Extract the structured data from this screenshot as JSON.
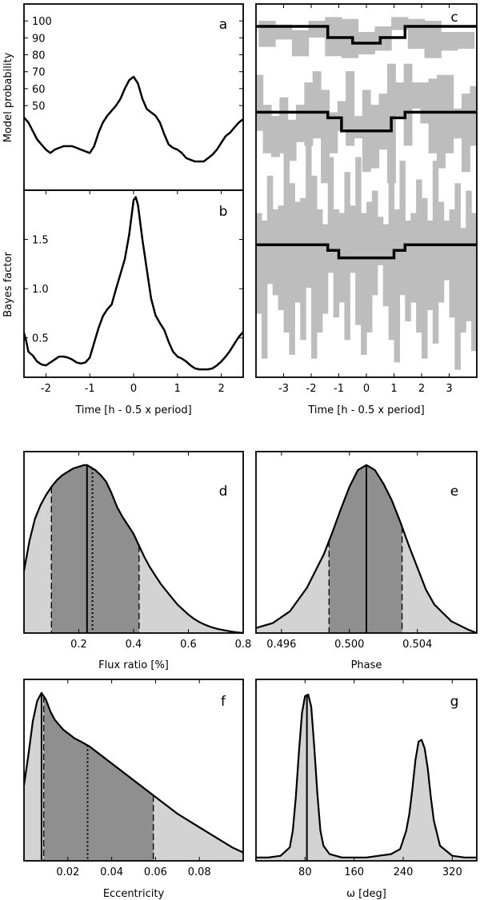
{
  "chart_data": [
    {
      "id": "a",
      "type": "line",
      "panel_label": "a",
      "ylabel": "Model probability",
      "xlim": [
        -2.5,
        2.5
      ],
      "ylim": [
        0,
        110
      ],
      "yticks": [
        50,
        60,
        70,
        80,
        90,
        100
      ],
      "x": [
        -2.5,
        -2.4,
        -2.3,
        -2.2,
        -2.1,
        -2.0,
        -1.9,
        -1.8,
        -1.7,
        -1.6,
        -1.5,
        -1.4,
        -1.3,
        -1.2,
        -1.1,
        -1.0,
        -0.9,
        -0.8,
        -0.7,
        -0.6,
        -0.5,
        -0.4,
        -0.3,
        -0.2,
        -0.1,
        0.0,
        0.1,
        0.2,
        0.3,
        0.4,
        0.5,
        0.6,
        0.7,
        0.8,
        0.9,
        1.0,
        1.1,
        1.2,
        1.3,
        1.4,
        1.5,
        1.6,
        1.7,
        1.8,
        1.9,
        2.0,
        2.1,
        2.2,
        2.3,
        2.4,
        2.5
      ],
      "y": [
        43,
        40,
        35,
        30,
        27,
        24,
        22,
        24,
        25,
        26,
        26,
        26,
        25,
        24,
        23,
        22,
        26,
        34,
        40,
        44,
        47,
        50,
        54,
        60,
        65,
        67,
        63,
        54,
        48,
        46,
        44,
        40,
        33,
        27,
        25,
        24,
        22,
        19,
        18,
        17,
        17,
        17,
        19,
        21,
        24,
        28,
        32,
        34,
        37,
        40,
        42
      ]
    },
    {
      "id": "b",
      "type": "line",
      "panel_label": "b",
      "ylabel": "Bayes factor",
      "xlabel": "Time [h - 0.5 x period]",
      "xlim": [
        -2.5,
        2.5
      ],
      "ylim": [
        0.1,
        2.0
      ],
      "xticks": [
        -2,
        -1,
        0,
        1,
        2
      ],
      "yticks": [
        0.5,
        1.0,
        1.5
      ],
      "ytick_labels": [
        "0.5",
        "1.0",
        "1.5"
      ],
      "x": [
        -2.5,
        -2.45,
        -2.4,
        -2.3,
        -2.2,
        -2.1,
        -2.0,
        -1.9,
        -1.8,
        -1.7,
        -1.6,
        -1.5,
        -1.4,
        -1.3,
        -1.2,
        -1.1,
        -1.0,
        -0.9,
        -0.8,
        -0.7,
        -0.6,
        -0.5,
        -0.4,
        -0.3,
        -0.2,
        -0.1,
        0.0,
        0.05,
        0.1,
        0.2,
        0.3,
        0.4,
        0.5,
        0.6,
        0.7,
        0.8,
        0.9,
        1.0,
        1.1,
        1.2,
        1.3,
        1.4,
        1.5,
        1.6,
        1.7,
        1.8,
        1.9,
        2.0,
        2.1,
        2.2,
        2.3,
        2.4,
        2.5
      ],
      "y": [
        0.55,
        0.47,
        0.36,
        0.32,
        0.26,
        0.23,
        0.22,
        0.25,
        0.28,
        0.31,
        0.31,
        0.3,
        0.28,
        0.25,
        0.24,
        0.25,
        0.3,
        0.45,
        0.6,
        0.72,
        0.79,
        0.84,
        1.0,
        1.15,
        1.3,
        1.55,
        1.9,
        1.93,
        1.85,
        1.5,
        1.2,
        0.9,
        0.73,
        0.65,
        0.58,
        0.46,
        0.36,
        0.31,
        0.29,
        0.26,
        0.22,
        0.19,
        0.18,
        0.18,
        0.18,
        0.19,
        0.22,
        0.26,
        0.31,
        0.37,
        0.44,
        0.51,
        0.56
      ]
    },
    {
      "id": "c",
      "type": "line",
      "panel_label": "c",
      "xlabel": "Time [h - 0.5 x period]",
      "xlim": [
        -4,
        4
      ],
      "ylim": [
        0,
        1
      ],
      "xticks": [
        -3,
        -2,
        -1,
        0,
        1,
        2,
        3
      ],
      "series": [
        {
          "name": "top",
          "bin_width": 0.6,
          "bin_centers": [
            -3.6,
            -3.0,
            -2.4,
            -1.8,
            -1.2,
            -0.6,
            0.0,
            0.6,
            1.2,
            1.8,
            2.4,
            3.0,
            3.6
          ],
          "lower": [
            0.885,
            0.905,
            0.86,
            0.91,
            0.86,
            0.855,
            0.865,
            0.875,
            0.93,
            0.88,
            0.855,
            0.875,
            0.88
          ],
          "upper": [
            0.955,
            0.945,
            0.93,
            0.955,
            0.965,
            0.96,
            0.925,
            0.94,
            0.965,
            0.96,
            0.955,
            0.925,
            0.925
          ],
          "model_x": [
            -4.0,
            -1.4,
            -1.4,
            -0.5,
            -0.5,
            0.5,
            0.5,
            1.4,
            1.4,
            4.0
          ],
          "model_y": [
            0.94,
            0.94,
            0.91,
            0.91,
            0.895,
            0.895,
            0.91,
            0.91,
            0.94,
            0.94
          ]
        },
        {
          "name": "middle",
          "bin_width": 0.3,
          "bin_centers": [
            -3.9,
            -3.6,
            -3.3,
            -3.0,
            -2.7,
            -2.4,
            -2.1,
            -1.8,
            -1.5,
            -1.2,
            -0.9,
            -0.6,
            -0.3,
            0.0,
            0.3,
            0.6,
            0.9,
            1.2,
            1.5,
            1.8,
            2.1,
            2.4,
            2.7,
            3.0,
            3.3,
            3.6,
            3.9
          ],
          "lower": [
            0.66,
            0.6,
            0.59,
            0.6,
            0.58,
            0.63,
            0.62,
            0.64,
            0.52,
            0.6,
            0.66,
            0.62,
            0.64,
            0.55,
            0.56,
            0.61,
            0.52,
            0.7,
            0.62,
            0.72,
            0.68,
            0.6,
            0.56,
            0.6,
            0.64,
            0.55,
            0.62
          ],
          "upper": [
            0.81,
            0.73,
            0.7,
            0.75,
            0.69,
            0.73,
            0.79,
            0.82,
            0.77,
            0.71,
            0.74,
            0.82,
            0.7,
            0.77,
            0.73,
            0.76,
            0.84,
            0.79,
            0.84,
            0.79,
            0.79,
            0.8,
            0.81,
            0.81,
            0.72,
            0.76,
            0.78
          ],
          "model_x": [
            -4.0,
            -1.4,
            -1.4,
            -0.9,
            -0.9,
            0.9,
            0.9,
            1.4,
            1.4,
            4.0
          ],
          "model_y": [
            0.71,
            0.71,
            0.695,
            0.695,
            0.66,
            0.66,
            0.695,
            0.695,
            0.71,
            0.71
          ]
        },
        {
          "name": "bottom",
          "bin_width": 0.2,
          "bin_centers": [
            -3.9,
            -3.7,
            -3.5,
            -3.3,
            -3.1,
            -2.9,
            -2.7,
            -2.5,
            -2.3,
            -2.1,
            -1.9,
            -1.7,
            -1.5,
            -1.3,
            -1.1,
            -0.9,
            -0.7,
            -0.5,
            -0.3,
            -0.1,
            0.1,
            0.3,
            0.5,
            0.7,
            0.9,
            1.1,
            1.3,
            1.5,
            1.7,
            1.9,
            2.1,
            2.3,
            2.5,
            2.7,
            2.9,
            3.1,
            3.3,
            3.5,
            3.7,
            3.9
          ],
          "lower": [
            0.17,
            0.05,
            0.25,
            0.22,
            0.18,
            0.12,
            0.06,
            0.2,
            0.1,
            0.24,
            0.05,
            0.12,
            0.17,
            0.28,
            0.16,
            0.2,
            0.1,
            0.28,
            0.14,
            0.06,
            0.12,
            0.22,
            0.3,
            0.19,
            0.1,
            0.04,
            0.22,
            0.15,
            0.2,
            0.12,
            0.05,
            0.18,
            0.09,
            0.2,
            0.26,
            0.16,
            0.02,
            0.12,
            0.15,
            0.07
          ],
          "upper": [
            0.44,
            0.42,
            0.54,
            0.45,
            0.46,
            0.6,
            0.52,
            0.47,
            0.48,
            0.62,
            0.54,
            0.45,
            0.41,
            0.59,
            0.45,
            0.44,
            0.55,
            0.46,
            0.59,
            0.44,
            0.47,
            0.5,
            0.43,
            0.41,
            0.55,
            0.45,
            0.58,
            0.42,
            0.44,
            0.53,
            0.48,
            0.42,
            0.58,
            0.47,
            0.42,
            0.45,
            0.52,
            0.4,
            0.5,
            0.44
          ],
          "model_x": [
            -4.0,
            -1.4,
            -1.4,
            -1.0,
            -1.0,
            1.0,
            1.0,
            1.4,
            1.4,
            4.0
          ],
          "model_y": [
            0.355,
            0.355,
            0.34,
            0.34,
            0.32,
            0.32,
            0.34,
            0.34,
            0.355,
            0.355
          ]
        }
      ]
    },
    {
      "id": "d",
      "type": "area",
      "panel_label": "d",
      "xlabel": "Flux ratio [%]",
      "xlim": [
        0,
        0.8
      ],
      "ylim": [
        0,
        1.08
      ],
      "xticks": [
        0.2,
        0.4,
        0.6,
        0.8
      ],
      "xtick_labels": [
        "0.2",
        "0.4",
        "0.6",
        "0.8"
      ],
      "x": [
        0.0,
        0.02,
        0.04,
        0.06,
        0.08,
        0.1,
        0.12,
        0.14,
        0.16,
        0.18,
        0.2,
        0.22,
        0.23,
        0.24,
        0.26,
        0.28,
        0.3,
        0.32,
        0.34,
        0.36,
        0.38,
        0.4,
        0.42,
        0.44,
        0.46,
        0.48,
        0.5,
        0.52,
        0.54,
        0.56,
        0.58,
        0.6,
        0.62,
        0.64,
        0.66,
        0.68,
        0.7,
        0.72,
        0.74,
        0.76,
        0.78,
        0.8
      ],
      "y": [
        0.37,
        0.55,
        0.68,
        0.76,
        0.82,
        0.87,
        0.91,
        0.94,
        0.96,
        0.98,
        0.99,
        1.0,
        1.0,
        0.99,
        0.97,
        0.94,
        0.9,
        0.83,
        0.75,
        0.69,
        0.64,
        0.59,
        0.52,
        0.45,
        0.39,
        0.34,
        0.29,
        0.25,
        0.21,
        0.17,
        0.14,
        0.11,
        0.085,
        0.065,
        0.05,
        0.037,
        0.027,
        0.02,
        0.014,
        0.008,
        0.004,
        0.0
      ],
      "ci": [
        0.1,
        0.42
      ],
      "median": 0.23,
      "mean": 0.25
    },
    {
      "id": "e",
      "type": "area",
      "panel_label": "e",
      "xlabel": "Phase",
      "xlim": [
        0.4945,
        0.5075
      ],
      "ylim": [
        0,
        1.08
      ],
      "xticks": [
        0.496,
        0.5,
        0.504
      ],
      "xtick_labels": [
        "0.496",
        "0.500",
        "0.504"
      ],
      "x": [
        0.4945,
        0.4955,
        0.4965,
        0.4975,
        0.4985,
        0.499,
        0.4995,
        0.5,
        0.5005,
        0.501,
        0.5015,
        0.502,
        0.5025,
        0.503,
        0.5035,
        0.504,
        0.5045,
        0.505,
        0.506,
        0.507,
        0.5075
      ],
      "y": [
        0.03,
        0.06,
        0.13,
        0.27,
        0.47,
        0.6,
        0.74,
        0.87,
        0.97,
        1.0,
        0.97,
        0.89,
        0.79,
        0.66,
        0.52,
        0.39,
        0.26,
        0.17,
        0.07,
        0.02,
        0.0
      ],
      "ci": [
        0.4988,
        0.5031
      ],
      "median": 0.501,
      "mean": 0.501
    },
    {
      "id": "f",
      "type": "area",
      "panel_label": "f",
      "xlabel": "Eccentricity",
      "xlim": [
        0,
        0.1
      ],
      "ylim": [
        0,
        1.08
      ],
      "xticks": [
        0.02,
        0.04,
        0.06,
        0.08
      ],
      "xtick_labels": [
        "0.02",
        "0.04",
        "0.06",
        "0.08"
      ],
      "x": [
        0.0,
        0.002,
        0.004,
        0.006,
        0.008,
        0.01,
        0.012,
        0.014,
        0.016,
        0.018,
        0.02,
        0.023,
        0.026,
        0.03,
        0.035,
        0.04,
        0.045,
        0.05,
        0.055,
        0.06,
        0.065,
        0.07,
        0.075,
        0.08,
        0.085,
        0.09,
        0.095,
        0.1
      ],
      "y": [
        0.45,
        0.63,
        0.83,
        0.95,
        1.0,
        0.96,
        0.89,
        0.84,
        0.81,
        0.78,
        0.76,
        0.73,
        0.71,
        0.68,
        0.63,
        0.58,
        0.53,
        0.48,
        0.43,
        0.38,
        0.33,
        0.28,
        0.24,
        0.2,
        0.16,
        0.12,
        0.08,
        0.05
      ],
      "ci": [
        0.009,
        0.059
      ],
      "median": 0.008,
      "mean": 0.029
    },
    {
      "id": "g",
      "type": "area",
      "panel_label": "g",
      "xlabel": "ω [deg]",
      "xlim": [
        0,
        360
      ],
      "ylim": [
        0,
        1.08
      ],
      "xticks": [
        80,
        160,
        240,
        320
      ],
      "xtick_labels": [
        "80",
        "160",
        "240",
        "320"
      ],
      "x": [
        0,
        20,
        40,
        55,
        60,
        65,
        70,
        75,
        80,
        85,
        90,
        95,
        100,
        105,
        110,
        120,
        140,
        160,
        180,
        200,
        220,
        235,
        245,
        250,
        255,
        260,
        265,
        270,
        275,
        280,
        285,
        290,
        300,
        320,
        340,
        360
      ],
      "y": [
        0.02,
        0.02,
        0.03,
        0.08,
        0.18,
        0.38,
        0.65,
        0.88,
        0.98,
        0.99,
        0.92,
        0.68,
        0.4,
        0.18,
        0.09,
        0.04,
        0.02,
        0.02,
        0.02,
        0.03,
        0.04,
        0.07,
        0.18,
        0.28,
        0.43,
        0.6,
        0.71,
        0.72,
        0.67,
        0.55,
        0.38,
        0.24,
        0.09,
        0.03,
        0.02,
        0.02
      ],
      "median": 83
    }
  ]
}
